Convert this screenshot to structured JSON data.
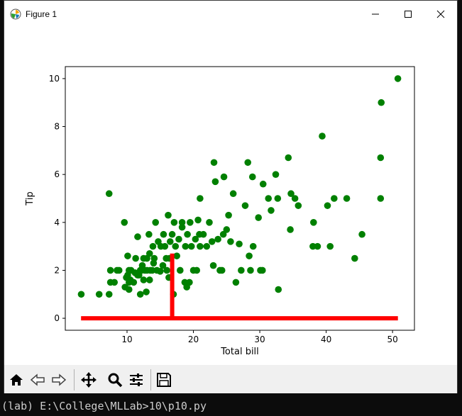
{
  "window": {
    "title": "Figure 1"
  },
  "terminal": {
    "prompt_line": "(lab) E:\\College\\MLLab>10\\p10.py"
  },
  "toolbar": {
    "buttons": [
      "home-icon",
      "back-icon",
      "forward-icon",
      "pan-icon",
      "zoom-icon",
      "configure-subplots-icon",
      "save-icon"
    ]
  },
  "colors": {
    "scatter": "#008000",
    "line": "#ff0000"
  },
  "chart_data": {
    "type": "scatter",
    "xlabel": "Total bill",
    "ylabel": "Tip",
    "xlim": [
      0.7,
      53.3
    ],
    "ylim": [
      -0.5,
      10.5
    ],
    "xticks": [
      10,
      20,
      30,
      40,
      50
    ],
    "yticks": [
      0,
      2,
      4,
      6,
      8,
      10
    ],
    "grid": false,
    "series": [
      {
        "kind": "scatter",
        "color": "#008000",
        "points": [
          [
            3.1,
            1.0
          ],
          [
            5.8,
            1.0
          ],
          [
            7.3,
            1.0
          ],
          [
            7.5,
            1.5
          ],
          [
            7.3,
            5.2
          ],
          [
            7.5,
            2.0
          ],
          [
            8.1,
            1.5
          ],
          [
            8.5,
            2.0
          ],
          [
            8.8,
            2.0
          ],
          [
            9.6,
            4.0
          ],
          [
            9.7,
            1.3
          ],
          [
            9.9,
            1.7
          ],
          [
            10.1,
            1.8
          ],
          [
            10.3,
            2.0
          ],
          [
            10.3,
            1.5
          ],
          [
            10.1,
            2.6
          ],
          [
            10.3,
            1.2
          ],
          [
            10.5,
            1.6
          ],
          [
            10.6,
            2.0
          ],
          [
            11.0,
            1.5
          ],
          [
            11.2,
            1.9
          ],
          [
            11.3,
            2.5
          ],
          [
            11.6,
            1.8
          ],
          [
            11.6,
            3.4
          ],
          [
            11.8,
            1.8
          ],
          [
            12.0,
            2.0
          ],
          [
            12.0,
            1.0
          ],
          [
            12.2,
            2.0
          ],
          [
            12.3,
            2.2
          ],
          [
            12.5,
            1.6
          ],
          [
            12.5,
            2.5
          ],
          [
            12.7,
            2.0
          ],
          [
            12.9,
            1.1
          ],
          [
            13.0,
            2.0
          ],
          [
            13.0,
            2.5
          ],
          [
            13.3,
            3.5
          ],
          [
            13.4,
            2.7
          ],
          [
            13.4,
            1.6
          ],
          [
            13.5,
            2.0
          ],
          [
            13.8,
            2.0
          ],
          [
            13.9,
            3.0
          ],
          [
            14.0,
            2.3
          ],
          [
            14.1,
            2.5
          ],
          [
            14.3,
            4.0
          ],
          [
            14.5,
            2.0
          ],
          [
            14.7,
            3.2
          ],
          [
            15.0,
            1.96
          ],
          [
            15.1,
            3.0
          ],
          [
            15.4,
            2.2
          ],
          [
            15.5,
            3.5
          ],
          [
            15.7,
            3.0
          ],
          [
            15.9,
            2.5
          ],
          [
            16.0,
            2.0
          ],
          [
            16.2,
            4.3
          ],
          [
            16.3,
            1.7
          ],
          [
            16.4,
            2.5
          ],
          [
            16.5,
            3.2
          ],
          [
            16.8,
            3.5
          ],
          [
            17.0,
            1.0
          ],
          [
            17.1,
            4.0
          ],
          [
            17.3,
            3.0
          ],
          [
            17.5,
            2.6
          ],
          [
            17.8,
            3.3
          ],
          [
            18.0,
            2.0
          ],
          [
            18.3,
            4.0
          ],
          [
            18.3,
            3.8
          ],
          [
            18.7,
            1.5
          ],
          [
            18.8,
            3.0
          ],
          [
            19.0,
            1.3
          ],
          [
            19.1,
            3.5
          ],
          [
            19.4,
            1.5
          ],
          [
            19.5,
            4.0
          ],
          [
            19.7,
            3.0
          ],
          [
            20.0,
            2.0
          ],
          [
            20.3,
            3.3
          ],
          [
            20.5,
            2.0
          ],
          [
            20.7,
            4.1
          ],
          [
            20.9,
            3.5
          ],
          [
            21.0,
            3.0
          ],
          [
            21.0,
            5.0
          ],
          [
            21.5,
            3.5
          ],
          [
            22.0,
            3.0
          ],
          [
            22.4,
            4.0
          ],
          [
            22.8,
            3.2
          ],
          [
            23.0,
            2.2
          ],
          [
            23.1,
            6.5
          ],
          [
            23.3,
            5.7
          ],
          [
            23.7,
            3.3
          ],
          [
            24.0,
            2.0
          ],
          [
            24.3,
            2.0
          ],
          [
            24.5,
            3.5
          ],
          [
            24.6,
            5.9
          ],
          [
            25.0,
            3.7
          ],
          [
            25.3,
            4.3
          ],
          [
            25.6,
            3.2
          ],
          [
            26.0,
            5.2
          ],
          [
            26.4,
            1.5
          ],
          [
            26.9,
            3.1
          ],
          [
            27.2,
            2.0
          ],
          [
            27.8,
            4.7
          ],
          [
            28.2,
            6.5
          ],
          [
            28.4,
            2.6
          ],
          [
            28.6,
            2.0
          ],
          [
            28.9,
            5.9
          ],
          [
            29.0,
            3.0
          ],
          [
            29.8,
            4.2
          ],
          [
            30.1,
            2.0
          ],
          [
            30.4,
            2.0
          ],
          [
            30.5,
            5.6
          ],
          [
            31.3,
            5.0
          ],
          [
            31.7,
            4.5
          ],
          [
            32.4,
            6.0
          ],
          [
            32.7,
            5.0
          ],
          [
            32.8,
            1.2
          ],
          [
            34.3,
            6.7
          ],
          [
            34.6,
            3.7
          ],
          [
            34.7,
            5.2
          ],
          [
            35.3,
            5.0
          ],
          [
            35.8,
            4.7
          ],
          [
            38.0,
            3.0
          ],
          [
            38.1,
            4.0
          ],
          [
            38.7,
            3.0
          ],
          [
            39.4,
            7.6
          ],
          [
            40.2,
            4.7
          ],
          [
            40.6,
            3.0
          ],
          [
            41.2,
            5.0
          ],
          [
            43.1,
            5.0
          ],
          [
            44.3,
            2.5
          ],
          [
            45.4,
            3.5
          ],
          [
            48.2,
            5.0
          ],
          [
            48.2,
            6.7
          ],
          [
            48.3,
            9.0
          ],
          [
            50.8,
            10.0
          ]
        ]
      },
      {
        "kind": "line",
        "color": "#ff0000",
        "points": [
          [
            3.07,
            0
          ],
          [
            50.81,
            0
          ],
          [
            16.8,
            0
          ],
          [
            16.8,
            2.7
          ]
        ]
      }
    ]
  }
}
